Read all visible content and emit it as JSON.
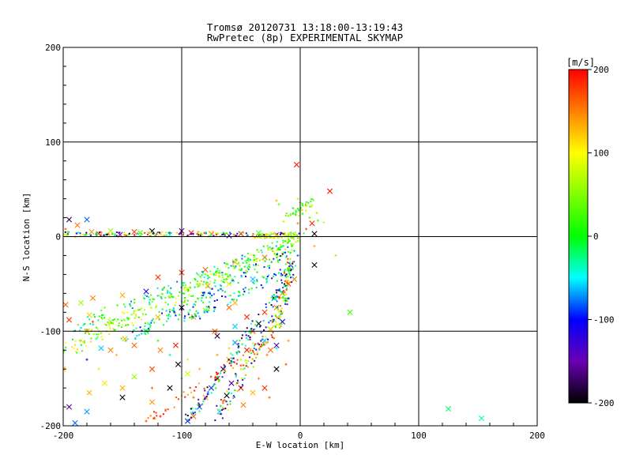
{
  "chart_data": {
    "type": "scatter",
    "title": "Tromsø 20120731 13:18:00-13:19:43",
    "subtitle": "RwPretec (8p) EXPERIMENTAL SKYMAP",
    "xlabel": "E-W location [km]",
    "ylabel": "N-S location [km]",
    "xlim": [
      -200,
      200
    ],
    "ylim": [
      -200,
      200
    ],
    "x_ticks": [
      -200,
      -100,
      0,
      100,
      200
    ],
    "y_ticks": [
      -200,
      -100,
      0,
      100,
      200
    ],
    "grid": true,
    "colorbar": {
      "label": "[m/s]",
      "range": [
        -200,
        200
      ],
      "ticks": [
        200,
        100,
        0,
        -100,
        -200
      ]
    },
    "series": [
      {
        "marker": "x",
        "points": [
          [
            -195,
            18,
            -180
          ],
          [
            -188,
            12,
            150
          ],
          [
            -180,
            18,
            -80
          ],
          [
            -176,
            5,
            140
          ],
          [
            -170,
            3,
            180
          ],
          [
            -160,
            6,
            60
          ],
          [
            -152,
            2,
            -150
          ],
          [
            -140,
            5,
            170
          ],
          [
            -135,
            4,
            30
          ],
          [
            -125,
            6,
            -200
          ],
          [
            -118,
            3,
            120
          ],
          [
            -110,
            2,
            -40
          ],
          [
            -100,
            6,
            -160
          ],
          [
            -92,
            4,
            190
          ],
          [
            -85,
            2,
            80
          ],
          [
            -75,
            3,
            150
          ],
          [
            -60,
            1,
            -120
          ],
          [
            -50,
            3,
            190
          ],
          [
            -35,
            4,
            30
          ],
          [
            -20,
            2,
            160
          ],
          [
            -3,
            76,
            190
          ],
          [
            25,
            48,
            190
          ],
          [
            10,
            14,
            180
          ],
          [
            12,
            3,
            -200
          ],
          [
            12,
            -30,
            -190
          ],
          [
            -30,
            -22,
            160
          ],
          [
            -55,
            -27,
            130
          ],
          [
            -80,
            -35,
            160
          ],
          [
            -100,
            -38,
            180
          ],
          [
            -120,
            -43,
            180
          ],
          [
            -130,
            -58,
            -120
          ],
          [
            -150,
            -62,
            130
          ],
          [
            -175,
            -65,
            150
          ],
          [
            -185,
            -70,
            60
          ],
          [
            -178,
            -83,
            120
          ],
          [
            -160,
            -90,
            60
          ],
          [
            -120,
            -85,
            130
          ],
          [
            -100,
            -75,
            -200
          ],
          [
            -90,
            -85,
            140
          ],
          [
            -80,
            -78,
            60
          ],
          [
            -60,
            -75,
            160
          ],
          [
            -45,
            -85,
            190
          ],
          [
            -55,
            -95,
            -60
          ],
          [
            -30,
            -80,
            180
          ],
          [
            -20,
            -75,
            150
          ],
          [
            -15,
            -60,
            140
          ],
          [
            -10,
            -50,
            170
          ],
          [
            -22,
            -65,
            -80
          ],
          [
            -35,
            -92,
            -200
          ],
          [
            -40,
            -100,
            170
          ],
          [
            -30,
            -110,
            -60
          ],
          [
            -25,
            -120,
            160
          ],
          [
            -20,
            -115,
            -140
          ],
          [
            -45,
            -120,
            190
          ],
          [
            -55,
            -112,
            -70
          ],
          [
            -60,
            -130,
            140
          ],
          [
            -65,
            -140,
            -180
          ],
          [
            -70,
            -150,
            190
          ],
          [
            -75,
            -160,
            -90
          ],
          [
            -80,
            -170,
            150
          ],
          [
            -85,
            -180,
            -80
          ],
          [
            -90,
            -190,
            160
          ],
          [
            -58,
            -155,
            -160
          ],
          [
            -50,
            -160,
            190
          ],
          [
            -40,
            -165,
            130
          ],
          [
            -30,
            -160,
            180
          ],
          [
            -62,
            -168,
            -200
          ],
          [
            -48,
            -178,
            150
          ],
          [
            -68,
            -185,
            -60
          ],
          [
            -95,
            -195,
            -90
          ],
          [
            -103,
            -135,
            -200
          ],
          [
            -125,
            -140,
            170
          ],
          [
            -140,
            -148,
            60
          ],
          [
            -150,
            -160,
            130
          ],
          [
            -165,
            -155,
            110
          ],
          [
            -178,
            -165,
            130
          ],
          [
            -195,
            -180,
            -160
          ],
          [
            -180,
            -185,
            -70
          ],
          [
            -190,
            -197,
            -80
          ],
          [
            -118,
            -120,
            150
          ],
          [
            -148,
            -108,
            130
          ],
          [
            -168,
            -118,
            -60
          ],
          [
            -180,
            -100,
            140
          ],
          [
            -195,
            -88,
            180
          ],
          [
            -198,
            -72,
            160
          ],
          [
            -205,
            -92,
            -40
          ],
          [
            -200,
            -140,
            130
          ],
          [
            -150,
            -170,
            -200
          ],
          [
            -160,
            -120,
            150
          ],
          [
            -125,
            -175,
            140
          ],
          [
            -95,
            -145,
            80
          ],
          [
            -110,
            -160,
            -200
          ],
          [
            -105,
            -115,
            190
          ],
          [
            -130,
            -100,
            -20
          ],
          [
            -140,
            -115,
            160
          ],
          [
            -20,
            -140,
            -200
          ],
          [
            -5,
            -45,
            150
          ],
          [
            -8,
            -30,
            -120
          ],
          [
            -15,
            -90,
            -120
          ],
          [
            -25,
            -98,
            130
          ],
          [
            42,
            -80,
            20
          ],
          [
            125,
            -182,
            -20
          ],
          [
            153,
            -192,
            -30
          ],
          [
            -70,
            -105,
            -180
          ],
          [
            -72,
            -100,
            160
          ],
          [
            -55,
            -70,
            130
          ],
          [
            -40,
            -45,
            -60
          ],
          [
            -60,
            -50,
            110
          ],
          [
            -78,
            -52,
            140
          ],
          [
            -95,
            -55,
            80
          ]
        ]
      },
      {
        "marker": "+",
        "points": [
          [
            -198,
            8,
            160
          ],
          [
            -190,
            0,
            150
          ],
          [
            -183,
            2,
            120
          ],
          [
            -172,
            4,
            -20
          ],
          [
            -162,
            3,
            140
          ],
          [
            -145,
            2,
            40
          ],
          [
            -128,
            4,
            140
          ],
          [
            -115,
            1,
            60
          ],
          [
            -104,
            4,
            120
          ],
          [
            -95,
            1,
            -150
          ],
          [
            -86,
            5,
            130
          ],
          [
            -78,
            0,
            90
          ],
          [
            -65,
            4,
            -40
          ],
          [
            -56,
            2,
            150
          ],
          [
            -45,
            1,
            40
          ],
          [
            -32,
            3,
            70
          ],
          [
            -26,
            0,
            140
          ],
          [
            -14,
            2,
            50
          ],
          [
            -8,
            4,
            20
          ],
          [
            -4,
            2,
            -40
          ],
          [
            -10,
            22,
            50
          ],
          [
            -14,
            16,
            70
          ],
          [
            -18,
            34,
            40
          ],
          [
            -6,
            30,
            -20
          ],
          [
            0,
            36,
            30
          ],
          [
            5,
            33,
            160
          ],
          [
            2,
            24,
            20
          ],
          [
            8,
            20,
            40
          ],
          [
            15,
            17,
            30
          ],
          [
            5,
            8,
            170
          ],
          [
            20,
            15,
            80
          ],
          [
            -2,
            14,
            150
          ],
          [
            -5,
            -15,
            -20
          ],
          [
            -7,
            -10,
            20
          ],
          [
            -2,
            -20,
            -80
          ],
          [
            12,
            -10,
            130
          ],
          [
            30,
            -20,
            60
          ],
          [
            -2,
            40,
            70
          ],
          [
            -20,
            38,
            130
          ],
          [
            14,
            25,
            60
          ],
          [
            -80,
            -40,
            40
          ],
          [
            -125,
            -160,
            160
          ],
          [
            -130,
            -195,
            170
          ],
          [
            -118,
            -190,
            190
          ],
          [
            -140,
            -200,
            160
          ],
          [
            -180,
            -130,
            -120
          ],
          [
            -170,
            -140,
            80
          ],
          [
            -155,
            -125,
            130
          ],
          [
            -185,
            -110,
            140
          ],
          [
            -172,
            -108,
            -30
          ],
          [
            -20,
            -118,
            -30
          ],
          [
            -28,
            -125,
            150
          ],
          [
            -12,
            -135,
            170
          ],
          [
            -40,
            -130,
            120
          ],
          [
            -50,
            -140,
            60
          ],
          [
            -35,
            -150,
            150
          ],
          [
            -26,
            -170,
            160
          ],
          [
            -10,
            -110,
            140
          ],
          [
            -150,
            -80,
            100
          ],
          [
            -165,
            -75,
            60
          ],
          [
            -175,
            -90,
            170
          ],
          [
            -120,
            -110,
            20
          ],
          [
            -110,
            -125,
            -20
          ],
          [
            -95,
            -130,
            80
          ],
          [
            -100,
            -150,
            -40
          ],
          [
            -85,
            -140,
            130
          ],
          [
            -70,
            -125,
            140
          ],
          [
            -60,
            -118,
            120
          ],
          [
            -50,
            -130,
            70
          ],
          [
            -90,
            -170,
            160
          ]
        ]
      },
      {
        "marker": "dot",
        "bands": [
          {
            "from": [
              -200,
              -120
            ],
            "to": [
              0,
              -2
            ],
            "spread": 8,
            "count": 260,
            "v_range": [
              -20,
              120
            ]
          },
          {
            "from": [
              -200,
              -100
            ],
            "to": [
              -10,
              -6
            ],
            "spread": 5,
            "count": 120,
            "v_range": [
              -80,
              60
            ]
          },
          {
            "from": [
              -150,
              -110
            ],
            "to": [
              -5,
              -10
            ],
            "spread": 6,
            "count": 140,
            "v_range": [
              -110,
              40
            ]
          },
          {
            "from": [
              -100,
              -90
            ],
            "to": [
              -3,
              -30
            ],
            "spread": 5,
            "count": 90,
            "v_range": [
              -120,
              20
            ]
          },
          {
            "from": [
              -95,
              -195
            ],
            "to": [
              -5,
              -35
            ],
            "spread": 5,
            "count": 140,
            "v_range": [
              -200,
              40
            ]
          },
          {
            "from": [
              -70,
              -190
            ],
            "to": [
              -10,
              -60
            ],
            "spread": 6,
            "count": 110,
            "v_range": [
              -200,
              190
            ]
          },
          {
            "from": [
              -130,
              -195
            ],
            "to": [
              -20,
              -105
            ],
            "spread": 4,
            "count": 60,
            "v_range": [
              120,
              200
            ]
          },
          {
            "from": [
              -200,
              3
            ],
            "to": [
              -2,
              2
            ],
            "spread": 2,
            "count": 150,
            "v_range": [
              -200,
              200
            ]
          },
          {
            "from": [
              -40,
              0
            ],
            "to": [
              -1,
              2
            ],
            "spread": 3,
            "count": 60,
            "v_range": [
              40,
              140
            ]
          },
          {
            "from": [
              -20,
              -100
            ],
            "to": [
              -8,
              -20
            ],
            "spread": 4,
            "count": 70,
            "v_range": [
              -40,
              190
            ]
          },
          {
            "from": [
              -10,
              20
            ],
            "to": [
              10,
              38
            ],
            "spread": 4,
            "count": 40,
            "v_range": [
              -40,
              110
            ]
          }
        ]
      }
    ]
  }
}
